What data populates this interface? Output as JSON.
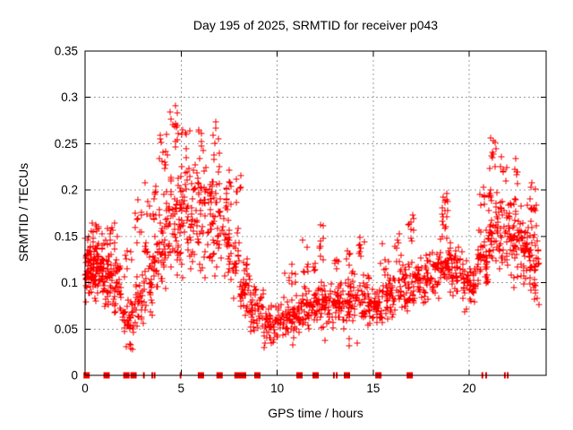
{
  "chart_data": {
    "type": "scatter",
    "title": "Day 195 of 2025, SRMTID for receiver p043",
    "xlabel": "GPS time / hours",
    "ylabel": "SRMTID / TECUs",
    "xlim": [
      0,
      24
    ],
    "ylim": [
      0,
      0.35
    ],
    "xticks": [
      0,
      5,
      10,
      15,
      20
    ],
    "yticks": [
      0,
      0.05,
      0.1,
      0.15,
      0.2,
      0.25,
      0.3,
      0.35
    ],
    "grid": true,
    "legend": "none",
    "marker": "plus",
    "colors": {
      "marker": "#ff0000",
      "axis": "#000000",
      "grid": "#9c9c9c",
      "background": "#ffffff",
      "text": "#000000"
    },
    "series_name": "SRMTID",
    "point_clusters_format": [
      "hour_start",
      "hour_end",
      "value_low",
      "value_high",
      "count"
    ],
    "point_clusters": [
      [
        0.0,
        0.35,
        0.075,
        0.155,
        50
      ],
      [
        0.0,
        1.5,
        0.085,
        0.13,
        30
      ],
      [
        0.3,
        0.9,
        0.075,
        0.165,
        60
      ],
      [
        0.35,
        0.8,
        0.155,
        0.172,
        6
      ],
      [
        0.9,
        1.45,
        0.065,
        0.155,
        55
      ],
      [
        1.45,
        1.95,
        0.05,
        0.145,
        40
      ],
      [
        1.1,
        1.8,
        0.148,
        0.168,
        7
      ],
      [
        1.95,
        2.55,
        0.035,
        0.09,
        38
      ],
      [
        2.0,
        2.45,
        0.095,
        0.145,
        7
      ],
      [
        2.1,
        2.5,
        0.027,
        0.04,
        5
      ],
      [
        2.55,
        3.05,
        0.05,
        0.115,
        32
      ],
      [
        2.6,
        3.0,
        0.12,
        0.205,
        10
      ],
      [
        3.05,
        3.6,
        0.06,
        0.15,
        40
      ],
      [
        3.1,
        3.7,
        0.15,
        0.215,
        12
      ],
      [
        3.6,
        4.2,
        0.08,
        0.19,
        48
      ],
      [
        3.85,
        4.3,
        0.19,
        0.28,
        14
      ],
      [
        4.2,
        4.9,
        0.1,
        0.235,
        58
      ],
      [
        4.35,
        4.85,
        0.235,
        0.302,
        13
      ],
      [
        4.9,
        5.5,
        0.1,
        0.25,
        52
      ],
      [
        5.0,
        5.45,
        0.25,
        0.272,
        5
      ],
      [
        5.5,
        6.1,
        0.09,
        0.24,
        50
      ],
      [
        5.85,
        6.3,
        0.24,
        0.272,
        6
      ],
      [
        6.1,
        6.7,
        0.1,
        0.25,
        46
      ],
      [
        6.6,
        7.0,
        0.15,
        0.3,
        16
      ],
      [
        6.7,
        7.45,
        0.09,
        0.22,
        42
      ],
      [
        7.3,
        7.65,
        0.17,
        0.235,
        8
      ],
      [
        7.45,
        8.05,
        0.08,
        0.17,
        35
      ],
      [
        7.85,
        8.15,
        0.17,
        0.225,
        7
      ],
      [
        8.05,
        8.6,
        0.055,
        0.135,
        40
      ],
      [
        8.6,
        9.3,
        0.04,
        0.105,
        48
      ],
      [
        9.3,
        10.0,
        0.032,
        0.08,
        48
      ],
      [
        10.0,
        10.7,
        0.04,
        0.085,
        48
      ],
      [
        10.4,
        10.95,
        0.09,
        0.125,
        8
      ],
      [
        10.7,
        11.4,
        0.045,
        0.09,
        48
      ],
      [
        11.3,
        11.65,
        0.095,
        0.15,
        7
      ],
      [
        11.4,
        12.1,
        0.05,
        0.1,
        48
      ],
      [
        11.8,
        12.0,
        0.1,
        0.13,
        4
      ],
      [
        12.1,
        12.8,
        0.05,
        0.105,
        48
      ],
      [
        12.15,
        12.4,
        0.115,
        0.168,
        9
      ],
      [
        12.8,
        13.5,
        0.045,
        0.105,
        46
      ],
      [
        12.85,
        13.2,
        0.105,
        0.135,
        6
      ],
      [
        13.5,
        14.2,
        0.05,
        0.115,
        46
      ],
      [
        13.6,
        13.8,
        0.115,
        0.148,
        5
      ],
      [
        14.2,
        14.9,
        0.05,
        0.11,
        46
      ],
      [
        14.25,
        14.55,
        0.115,
        0.163,
        8
      ],
      [
        14.9,
        15.6,
        0.045,
        0.1,
        46
      ],
      [
        15.3,
        15.8,
        0.105,
        0.145,
        6
      ],
      [
        15.6,
        16.3,
        0.055,
        0.115,
        46
      ],
      [
        16.1,
        16.5,
        0.12,
        0.165,
        7
      ],
      [
        16.3,
        17.0,
        0.065,
        0.13,
        46
      ],
      [
        16.8,
        17.15,
        0.135,
        0.19,
        9
      ],
      [
        17.0,
        17.7,
        0.07,
        0.135,
        46
      ],
      [
        17.7,
        18.4,
        0.075,
        0.145,
        46
      ],
      [
        18.4,
        19.0,
        0.09,
        0.155,
        44
      ],
      [
        18.55,
        18.95,
        0.15,
        0.2,
        16
      ],
      [
        19.0,
        19.7,
        0.08,
        0.14,
        46
      ],
      [
        19.7,
        20.4,
        0.065,
        0.135,
        46
      ],
      [
        20.4,
        21.0,
        0.08,
        0.165,
        46
      ],
      [
        20.55,
        20.85,
        0.165,
        0.225,
        8
      ],
      [
        21.0,
        21.6,
        0.1,
        0.21,
        48
      ],
      [
        21.05,
        21.4,
        0.21,
        0.273,
        11
      ],
      [
        21.6,
        22.2,
        0.1,
        0.2,
        48
      ],
      [
        21.6,
        21.95,
        0.2,
        0.245,
        7
      ],
      [
        22.2,
        22.8,
        0.09,
        0.2,
        48
      ],
      [
        22.35,
        22.55,
        0.2,
        0.24,
        6
      ],
      [
        22.8,
        23.35,
        0.08,
        0.19,
        46
      ],
      [
        23.15,
        23.5,
        0.15,
        0.212,
        14
      ],
      [
        23.35,
        23.65,
        0.075,
        0.155,
        24
      ],
      [
        9.0,
        15.0,
        0.028,
        0.042,
        10
      ]
    ],
    "zero_marks": {
      "description": "red filled marks on the y=0 axis line at these GPS hours",
      "square_hours": [
        0.08,
        1.12,
        2.15,
        2.52,
        6.03,
        7.0,
        8.97,
        11.16,
        12.0,
        13.63,
        15.27,
        16.9
      ],
      "wide_blocks": [
        {
          "x": 8.08,
          "w": 0.62
        }
      ],
      "narrow_hours": [
        3.06,
        3.5,
        3.62,
        4.97,
        12.95,
        13.1,
        20.68,
        20.88,
        21.85,
        22.0
      ]
    }
  }
}
